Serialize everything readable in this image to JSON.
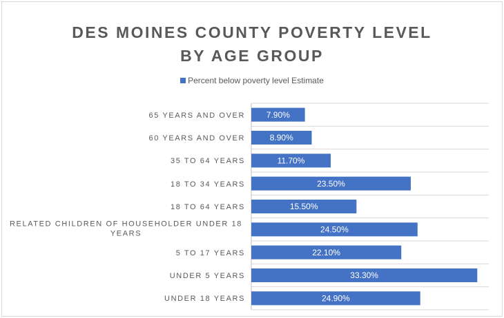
{
  "chart_data": {
    "type": "bar",
    "orientation": "horizontal",
    "title": "DES MOINES COUNTY POVERTY LEVEL BY AGE GROUP",
    "categories": [
      "65 YEARS AND OVER",
      "60 YEARS AND OVER",
      "35 TO 64 YEARS",
      "18 TO 34 YEARS",
      "18 TO 64 YEARS",
      "RELATED CHILDREN OF HOUSEHOLDER UNDER 18 YEARS",
      "5 TO 17 YEARS",
      "UNDER 5 YEARS",
      "UNDER 18 YEARS"
    ],
    "series": [
      {
        "name": "Percent below poverty level Estimate",
        "color": "#4472c4",
        "values": [
          7.9,
          8.9,
          11.7,
          23.5,
          15.5,
          24.5,
          22.1,
          33.3,
          24.9
        ],
        "value_labels": [
          "7.90%",
          "8.90%",
          "11.70%",
          "23.50%",
          "15.50%",
          "24.50%",
          "22.10%",
          "33.30%",
          "24.90%"
        ]
      }
    ],
    "xlim": [
      0,
      35
    ],
    "legend": "top"
  }
}
